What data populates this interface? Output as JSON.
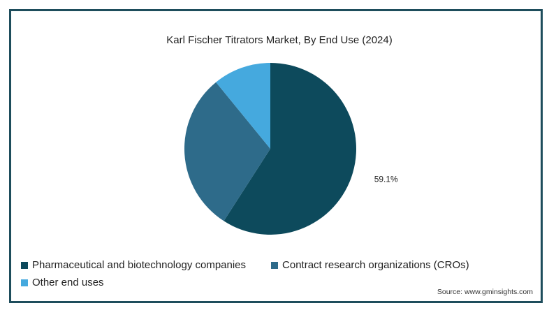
{
  "chart_data": {
    "type": "pie",
    "title": "Karl Fischer Titrators Market, By End Use (2024)",
    "slices": [
      {
        "name": "Pharmaceutical and biotechnology companies",
        "value": 59.1,
        "label": "59.1%",
        "color": "#0d4a5c"
      },
      {
        "name": "Contract research organizations (CROs)",
        "value": 30.0,
        "label": "",
        "color": "#2e6b8a"
      },
      {
        "name": "Other end uses",
        "value": 10.9,
        "label": "",
        "color": "#45a9de"
      }
    ],
    "legend_position": "bottom-left"
  },
  "source": "Source: www.gminsights.com"
}
